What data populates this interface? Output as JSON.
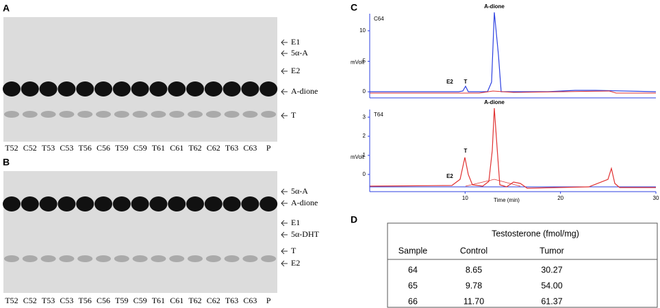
{
  "panels": {
    "A": {
      "label": "A",
      "lanes": [
        "T52",
        "C52",
        "T53",
        "C53",
        "T56",
        "C56",
        "T59",
        "C59",
        "T61",
        "C61",
        "T62",
        "C62",
        "T63",
        "C63",
        "P"
      ],
      "bands": [
        "E1",
        "5α-A",
        "E2",
        "A-dione",
        "T"
      ]
    },
    "B": {
      "label": "B",
      "lanes": [
        "T52",
        "C52",
        "T53",
        "C53",
        "T56",
        "C56",
        "T59",
        "C59",
        "T61",
        "C61",
        "T62",
        "C62",
        "T63",
        "C63",
        "P"
      ],
      "bands": [
        "5α-A",
        "A-dione",
        "E1",
        "5α-DHT",
        "T",
        "E2"
      ]
    },
    "C": {
      "label": "C",
      "xlabel": "Time (min)",
      "ylabel": "mVolt",
      "xlim": [
        0,
        30
      ],
      "xticks": [
        10,
        20,
        30
      ],
      "plots": [
        {
          "sample": "C64",
          "ylim": [
            -1,
            12.8
          ],
          "yticks": [
            0,
            5,
            10
          ],
          "peaks": [
            "E2",
            "T",
            "A-dione"
          ]
        },
        {
          "sample": "T64",
          "ylim": [
            -0.9,
            3.4
          ],
          "yticks": [
            0,
            1,
            2,
            3
          ],
          "peaks": [
            "E2",
            "T",
            "A-dione"
          ]
        }
      ]
    },
    "D": {
      "label": "D",
      "title": "Testosterone (fmol/mg)",
      "columns": [
        "Sample",
        "Control",
        "Tumor"
      ],
      "rows": [
        [
          "64",
          "8.65",
          "30.27"
        ],
        [
          "65",
          "9.78",
          "54.00"
        ],
        [
          "66",
          "11.70",
          "61.37"
        ]
      ]
    }
  }
}
